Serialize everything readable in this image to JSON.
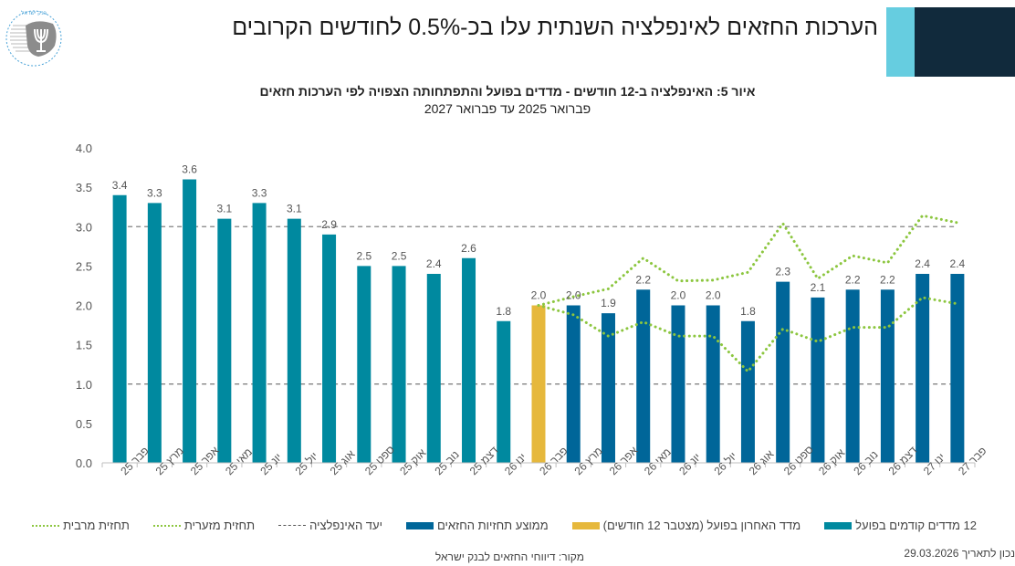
{
  "header": {
    "title": "הערכות החזאים לאינפלציה השנתית עלו בכ-0.5% לחודשים הקרובים",
    "logo_icon": "bank-of-israel-menorah-icon",
    "logo_text_he": "בנק ישראל",
    "logo_text_en": "BANK OF ISRAEL",
    "accent_light": "#66cde0",
    "accent_dark": "#112a3c"
  },
  "chart_data": {
    "type": "bar",
    "title": "איור 5: האינפלציה ב-12 חודשים - מדדים בפועל והתפתחותה הצפויה לפי הערכות חזאים",
    "subtitle": "פברואר 2025 עד פברואר 2027",
    "xlabel": "",
    "ylabel": "",
    "ylim": [
      0,
      4.0
    ],
    "yticks": [
      "0.0",
      "0.5",
      "1.0",
      "1.5",
      "2.0",
      "2.5",
      "3.0",
      "3.5",
      "4.0"
    ],
    "grid": false,
    "categories": [
      "פבר 25",
      "מרץ 25",
      "אפר 25",
      "מאי 25",
      "יונ 25",
      "יול 25",
      "אוג 25",
      "ספט 25",
      "אוק 25",
      "נוב 25",
      "דצמ 25",
      "ינו 26",
      "פבר 26",
      "מרץ 26",
      "אפר 26",
      "מאי 26",
      "יונ 26",
      "יול 26",
      "אוג 26",
      "ספט 26",
      "אוק 26",
      "נוב 26",
      "דצמ 26",
      "ינו 27",
      "פבר 27"
    ],
    "series": [
      {
        "name": "12 מדדים קודמים בפועל",
        "kind": "bar",
        "color": "#00899f",
        "values": [
          3.4,
          3.3,
          3.6,
          3.1,
          3.3,
          3.1,
          2.9,
          2.5,
          2.5,
          2.4,
          2.6,
          1.8,
          null,
          null,
          null,
          null,
          null,
          null,
          null,
          null,
          null,
          null,
          null,
          null,
          null
        ],
        "labels": [
          "3.4",
          "3.3",
          "3.6",
          "3.1",
          "3.3",
          "3.1",
          "2.9",
          "2.5",
          "2.5",
          "2.4",
          "2.6",
          "1.8",
          "",
          "",
          "",
          "",
          "",
          "",
          "",
          "",
          "",
          "",
          "",
          "",
          ""
        ]
      },
      {
        "name": "מדד האחרון בפועל (מצטבר 12 חודשים)",
        "kind": "bar",
        "color": "#e6b83c",
        "values": [
          null,
          null,
          null,
          null,
          null,
          null,
          null,
          null,
          null,
          null,
          null,
          null,
          2.0,
          null,
          null,
          null,
          null,
          null,
          null,
          null,
          null,
          null,
          null,
          null,
          null
        ],
        "labels": [
          "",
          "",
          "",
          "",
          "",
          "",
          "",
          "",
          "",
          "",
          "",
          "",
          "2.0",
          "",
          "",
          "",
          "",
          "",
          "",
          "",
          "",
          "",
          "",
          "",
          ""
        ]
      },
      {
        "name": "ממוצע תחזיות החזאים",
        "kind": "bar",
        "color": "#006699",
        "values": [
          null,
          null,
          null,
          null,
          null,
          null,
          null,
          null,
          null,
          null,
          null,
          null,
          null,
          2.0,
          1.9,
          2.2,
          2.0,
          2.0,
          1.8,
          2.3,
          2.1,
          2.2,
          2.2,
          2.4,
          2.4
        ],
        "labels": [
          "",
          "",
          "",
          "",
          "",
          "",
          "",
          "",
          "",
          "",
          "",
          "",
          "",
          "2.0",
          "1.9",
          "2.2",
          "2.0",
          "2.0",
          "1.8",
          "2.3",
          "2.1",
          "2.2",
          "2.2",
          "2.4",
          "2.4"
        ]
      },
      {
        "name": "יעד האינפלציה",
        "kind": "dashed-line",
        "color": "#555555",
        "upper": 3.0,
        "lower": 1.0
      },
      {
        "name": "תחזית מזערית",
        "kind": "dotted-line",
        "color": "#8cc63f",
        "values": [
          null,
          null,
          null,
          null,
          null,
          null,
          null,
          null,
          null,
          null,
          null,
          null,
          2.0,
          1.88,
          1.61,
          1.79,
          1.61,
          1.61,
          1.16,
          1.7,
          1.54,
          1.72,
          1.72,
          2.1,
          2.02
        ]
      },
      {
        "name": "תחזית מרבית",
        "kind": "dotted-line",
        "color": "#8cc63f",
        "values": [
          null,
          null,
          null,
          null,
          null,
          null,
          null,
          null,
          null,
          null,
          null,
          null,
          2.0,
          2.11,
          2.21,
          2.6,
          2.31,
          2.32,
          2.42,
          3.04,
          2.34,
          2.63,
          2.54,
          3.14,
          3.05
        ]
      }
    ],
    "legend_position": "bottom"
  },
  "legend": {
    "items": [
      {
        "label": "12 מדדים קודמים בפועל",
        "type": "swatch",
        "color": "#00899f"
      },
      {
        "label": "מדד האחרון בפועל (מצטבר 12 חודשים)",
        "type": "swatch",
        "color": "#e6b83c"
      },
      {
        "label": "ממוצע תחזיות החזאים",
        "type": "swatch",
        "color": "#006699"
      },
      {
        "label": "יעד האינפלציה",
        "type": "dashed",
        "color": "#555555"
      },
      {
        "label": "תחזית מזערית",
        "type": "dotted",
        "color": "#8cc63f"
      },
      {
        "label": "תחזית מרבית",
        "type": "dotted",
        "color": "#8cc63f"
      }
    ]
  },
  "footer": {
    "source": "מקור: דיווחי החזאים לבנק ישראל",
    "date": "נכון לתאריך 29.03.2026"
  }
}
